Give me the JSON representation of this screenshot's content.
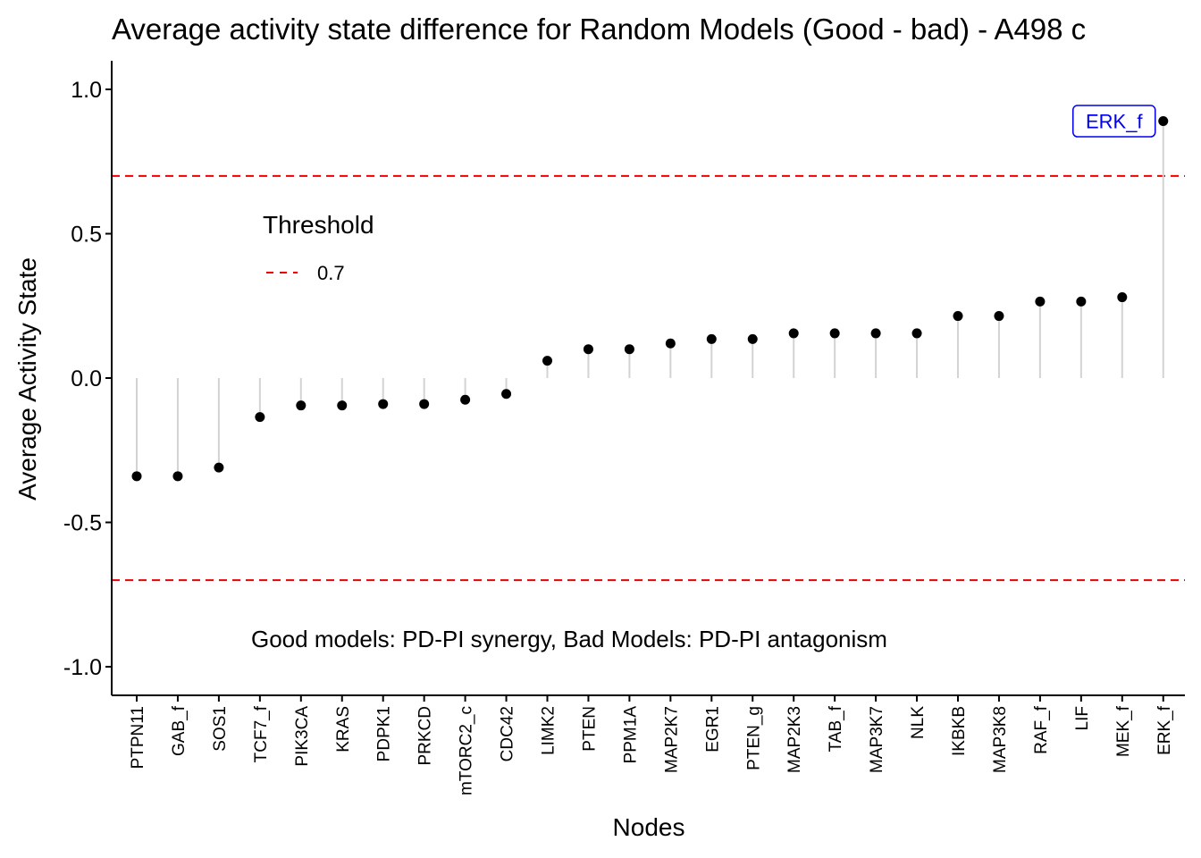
{
  "chart_data": {
    "type": "lollipop",
    "title": "Average activity state difference for Random Models (Good - bad) - A498 c",
    "xlabel": "Nodes",
    "ylabel": "Average Activity State",
    "ylim": [
      -1.1,
      1.1
    ],
    "yticks": [
      1.0,
      0.5,
      0.0,
      -0.5,
      -1.0
    ],
    "ytick_labels": [
      "1.0",
      "0.5",
      "0.0",
      "-0.5",
      "-1.0"
    ],
    "categories": [
      "PTPN11",
      "GAB_f",
      "SOS1",
      "TCF7_f",
      "PIK3CA",
      "KRAS",
      "PDPK1",
      "PRKCD",
      "mTORC2_c",
      "CDC42",
      "LIMK2",
      "PTEN",
      "PPM1A",
      "MAP2K7",
      "EGR1",
      "PTEN_g",
      "MAP2K3",
      "TAB_f",
      "MAP3K7",
      "NLK",
      "IKBKB",
      "MAP3K8",
      "RAF_f",
      "LIF",
      "MEK_f",
      "ERK_f"
    ],
    "values": [
      -0.34,
      -0.34,
      -0.31,
      -0.135,
      -0.095,
      -0.095,
      -0.09,
      -0.09,
      -0.075,
      -0.055,
      0.06,
      0.1,
      0.1,
      0.12,
      0.135,
      0.135,
      0.155,
      0.155,
      0.155,
      0.155,
      0.215,
      0.215,
      0.265,
      0.265,
      0.28,
      0.89
    ],
    "thresholds": [
      0.7,
      -0.7
    ],
    "threshold_color": "#ee0000",
    "stem_color": "#d3d3d3",
    "point_color": "#000000",
    "label_color": "#0000ee",
    "legend": {
      "title": "Threshold",
      "label": "0.7"
    },
    "annotation": "Good models: PD-PI synergy,  Bad Models: PD-PI antagonism",
    "highlight_label": "ERK_f",
    "highlight_index": 25,
    "grid": false
  }
}
